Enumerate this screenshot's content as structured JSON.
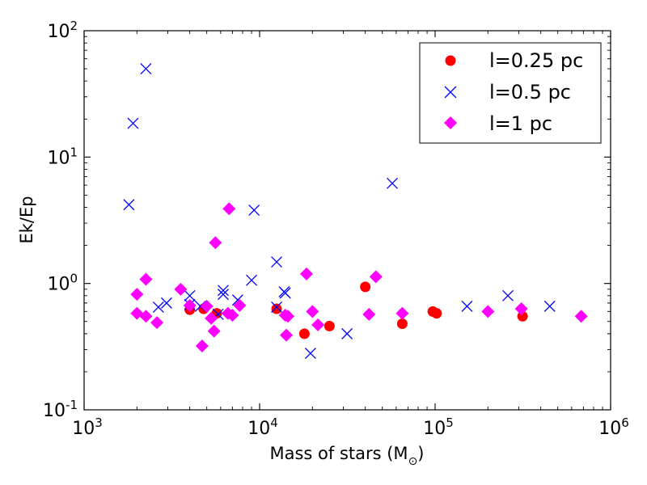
{
  "chart_data": {
    "type": "scatter",
    "xscale": "log",
    "yscale": "log",
    "xlim": [
      1000,
      1000000
    ],
    "ylim": [
      0.1,
      100
    ],
    "xlabel": "Mass of stars (M⊙)",
    "xlabel_main": "Mass of stars (M",
    "xlabel_sub": "⊙",
    "xlabel_close": ")",
    "ylabel": "Ek/Ep",
    "xticks": [
      {
        "value": 1000,
        "base": "10",
        "exp": "3"
      },
      {
        "value": 10000,
        "base": "10",
        "exp": "4"
      },
      {
        "value": 100000,
        "base": "10",
        "exp": "5"
      },
      {
        "value": 1000000,
        "base": "10",
        "exp": "6"
      }
    ],
    "yticks": [
      {
        "value": 0.1,
        "base": "10",
        "exp": "-1"
      },
      {
        "value": 1,
        "base": "10",
        "exp": "0"
      },
      {
        "value": 10,
        "base": "10",
        "exp": "1"
      },
      {
        "value": 100,
        "base": "10",
        "exp": "2"
      }
    ],
    "legend_position": "top-right",
    "series": [
      {
        "name": "l=0.25 pc",
        "marker": "circle",
        "color": "#ff0000",
        "points": [
          [
            4000,
            0.62
          ],
          [
            4800,
            0.63
          ],
          [
            5700,
            0.58
          ],
          [
            12500,
            0.63
          ],
          [
            18000,
            0.4
          ],
          [
            25000,
            0.46
          ],
          [
            40000,
            0.94
          ],
          [
            65000,
            0.48
          ],
          [
            97000,
            0.6
          ],
          [
            102000,
            0.58
          ],
          [
            315000,
            0.55
          ]
        ]
      },
      {
        "name": "l=0.5 pc",
        "marker": "x",
        "color": "#0000ff",
        "points": [
          [
            1800,
            4.2
          ],
          [
            1900,
            18.5
          ],
          [
            2250,
            50
          ],
          [
            2650,
            0.65
          ],
          [
            2950,
            0.7
          ],
          [
            4000,
            0.8
          ],
          [
            4000,
            0.68
          ],
          [
            4600,
            0.66
          ],
          [
            5800,
            0.57
          ],
          [
            6200,
            0.88
          ],
          [
            6200,
            0.82
          ],
          [
            7500,
            0.74
          ],
          [
            9000,
            1.06
          ],
          [
            9300,
            3.8
          ],
          [
            12500,
            1.48
          ],
          [
            12500,
            0.65
          ],
          [
            13800,
            0.86
          ],
          [
            14000,
            0.84
          ],
          [
            19500,
            0.28
          ],
          [
            31500,
            0.4
          ],
          [
            57000,
            6.2
          ],
          [
            152000,
            0.66
          ],
          [
            260000,
            0.8
          ],
          [
            450000,
            0.66
          ]
        ]
      },
      {
        "name": "l=1 pc",
        "marker": "diamond",
        "color": "#ff00ff",
        "points": [
          [
            2000,
            0.82
          ],
          [
            2000,
            0.58
          ],
          [
            2250,
            1.08
          ],
          [
            2250,
            0.55
          ],
          [
            2600,
            0.49
          ],
          [
            3550,
            0.9
          ],
          [
            4000,
            0.67
          ],
          [
            4700,
            0.32
          ],
          [
            5000,
            0.66
          ],
          [
            5300,
            0.53
          ],
          [
            5500,
            0.42
          ],
          [
            5600,
            2.1
          ],
          [
            6700,
            3.9
          ],
          [
            6600,
            0.58
          ],
          [
            7000,
            0.56
          ],
          [
            7700,
            0.67
          ],
          [
            14000,
            0.56
          ],
          [
            14200,
            0.39
          ],
          [
            14500,
            0.55
          ],
          [
            18500,
            1.19
          ],
          [
            20000,
            0.6
          ],
          [
            21500,
            0.47
          ],
          [
            42000,
            0.57
          ],
          [
            46000,
            1.13
          ],
          [
            65000,
            0.58
          ],
          [
            200000,
            0.6
          ],
          [
            310000,
            0.63
          ],
          [
            680000,
            0.55
          ]
        ]
      }
    ]
  }
}
